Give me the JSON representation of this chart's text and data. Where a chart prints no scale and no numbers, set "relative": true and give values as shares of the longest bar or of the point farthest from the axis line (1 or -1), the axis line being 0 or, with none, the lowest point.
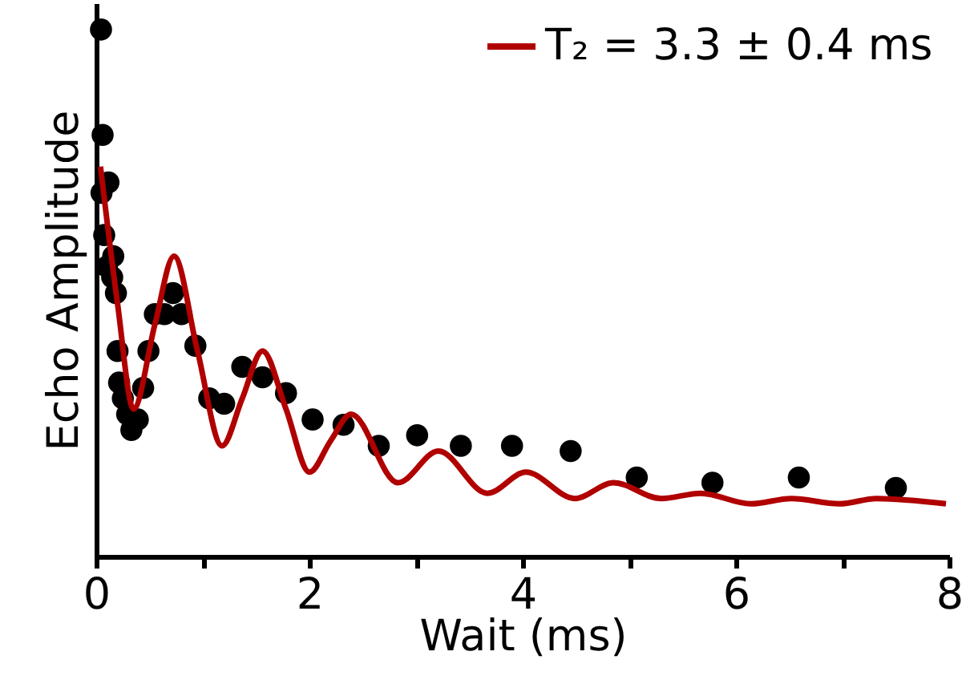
{
  "chart_data": {
    "type": "scatter",
    "xlabel": "Wait (ms)",
    "ylabel": "Echo Amplitude",
    "relative": true,
    "xlim": [
      0,
      8
    ],
    "xticks": [
      0,
      {
        "value": 1,
        "label": null
      },
      2,
      {
        "value": 3,
        "label": null
      },
      4,
      {
        "value": 5,
        "label": null
      },
      6,
      {
        "value": 7,
        "label": null
      },
      8
    ],
    "legend": "top right",
    "marker": "circle",
    "grid": false,
    "series": [
      {
        "color": "#000000",
        "x": [
          0.045,
          0.06,
          0.115,
          0.05,
          0.075,
          0.16,
          0.1,
          0.15,
          0.185,
          0.2,
          0.215,
          0.25,
          0.29,
          0.33,
          0.39,
          0.44,
          0.49,
          0.55,
          0.64,
          0.72,
          0.8,
          0.93,
          1.06,
          1.2,
          1.37,
          1.56,
          1.78,
          2.03,
          2.32,
          2.65,
          3.01,
          3.42,
          3.9,
          4.45,
          5.07,
          5.78,
          6.59,
          7.5
        ],
        "values": [
          1.0,
          0.8,
          0.71,
          0.69,
          0.61,
          0.57,
          0.55,
          0.53,
          0.5,
          0.39,
          0.33,
          0.3,
          0.27,
          0.24,
          0.26,
          0.32,
          0.39,
          0.46,
          0.46,
          0.5,
          0.46,
          0.4,
          0.3,
          0.29,
          0.36,
          0.34,
          0.31,
          0.26,
          0.25,
          0.21,
          0.23,
          0.21,
          0.21,
          0.2,
          0.15,
          0.14,
          0.15,
          0.13
        ]
      },
      {
        "type": "line",
        "name": "T₂ = 3.3 ± 0.4 ms",
        "color": "#b00000",
        "line_style": "solid",
        "marker": "none",
        "x": [
          0.04,
          0.2,
          0.35,
          0.55,
          0.73,
          0.95,
          1.18,
          1.37,
          1.56,
          1.78,
          2.0,
          2.2,
          2.39,
          2.83,
          3.21,
          3.67,
          4.03,
          4.49,
          4.85,
          5.3,
          5.67,
          6.14,
          6.52,
          6.97,
          7.32,
          7.97
        ],
        "values": [
          0.74,
          0.48,
          0.28,
          0.44,
          0.57,
          0.39,
          0.21,
          0.3,
          0.39,
          0.28,
          0.16,
          0.22,
          0.27,
          0.14,
          0.2,
          0.12,
          0.16,
          0.11,
          0.14,
          0.11,
          0.12,
          0.1,
          0.11,
          0.1,
          0.11,
          0.1
        ]
      }
    ]
  }
}
